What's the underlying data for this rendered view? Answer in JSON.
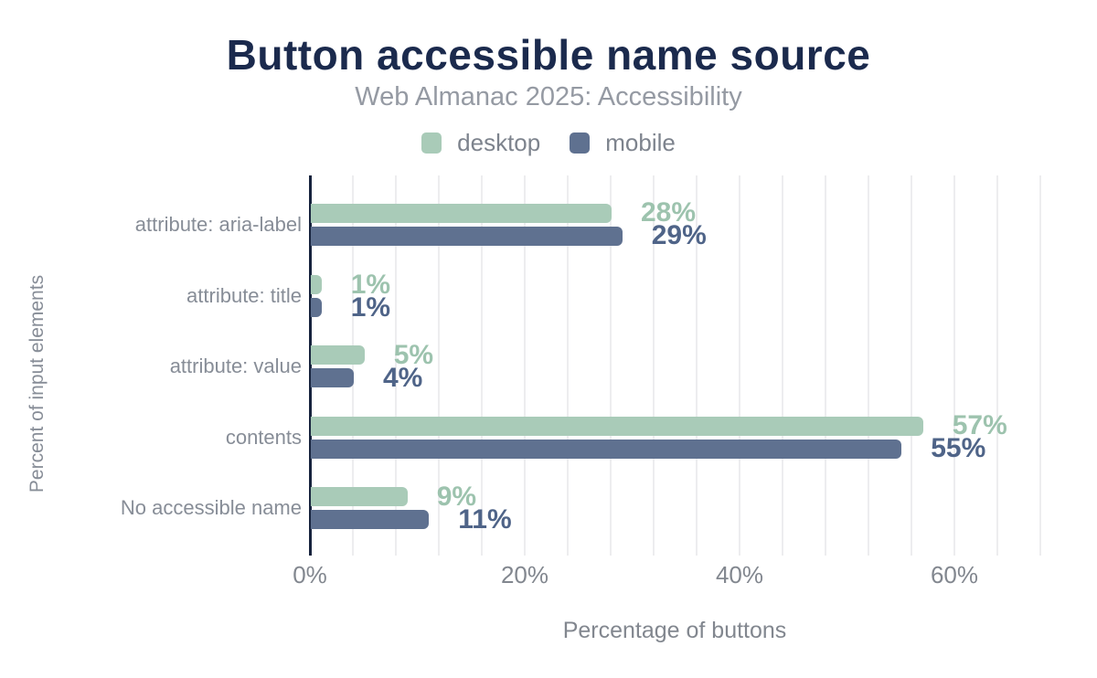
{
  "chart": {
    "title": "Button accessible name source",
    "subtitle": "Web Almanac 2025: Accessibility",
    "xlabel": "Percentage of buttons",
    "ylabel": "Percent of input elements"
  },
  "chart_data": {
    "type": "bar",
    "orientation": "horizontal",
    "title": "Button accessible name source",
    "subtitle": "Web Almanac 2025: Accessibility",
    "xlabel": "Percentage of buttons",
    "ylabel": "Percent of input elements",
    "categories": [
      "attribute: aria-label",
      "attribute: title",
      "attribute: value",
      "contents",
      "No accessible name"
    ],
    "series": [
      {
        "name": "desktop",
        "values": [
          28,
          1,
          5,
          57,
          9
        ],
        "bar_color": "#a9cbb8",
        "label_color": "#9dc3ae"
      },
      {
        "name": "mobile",
        "values": [
          29,
          1,
          4,
          55,
          11
        ],
        "bar_color": "#5f7190",
        "label_color": "#4f6488"
      }
    ],
    "value_suffix": "%",
    "data_labels": [
      [
        "28%",
        "1%",
        "5%",
        "57%",
        "9%"
      ],
      [
        "29%",
        "1%",
        "4%",
        "55%",
        "11%"
      ]
    ],
    "xlim": [
      0,
      68
    ],
    "x_ticks": [
      0,
      20,
      40,
      60
    ],
    "x_tick_labels": [
      "0%",
      "20%",
      "40%",
      "60%"
    ],
    "grid": true,
    "grid_step_pct": 4,
    "legend_position": "top"
  },
  "colors": {
    "title": "#1b2a4d",
    "subtitle": "#959aa3",
    "axis_line": "#17233d",
    "gridline": "#ededef",
    "text_gray": "#82878f",
    "background": "#ffffff"
  }
}
